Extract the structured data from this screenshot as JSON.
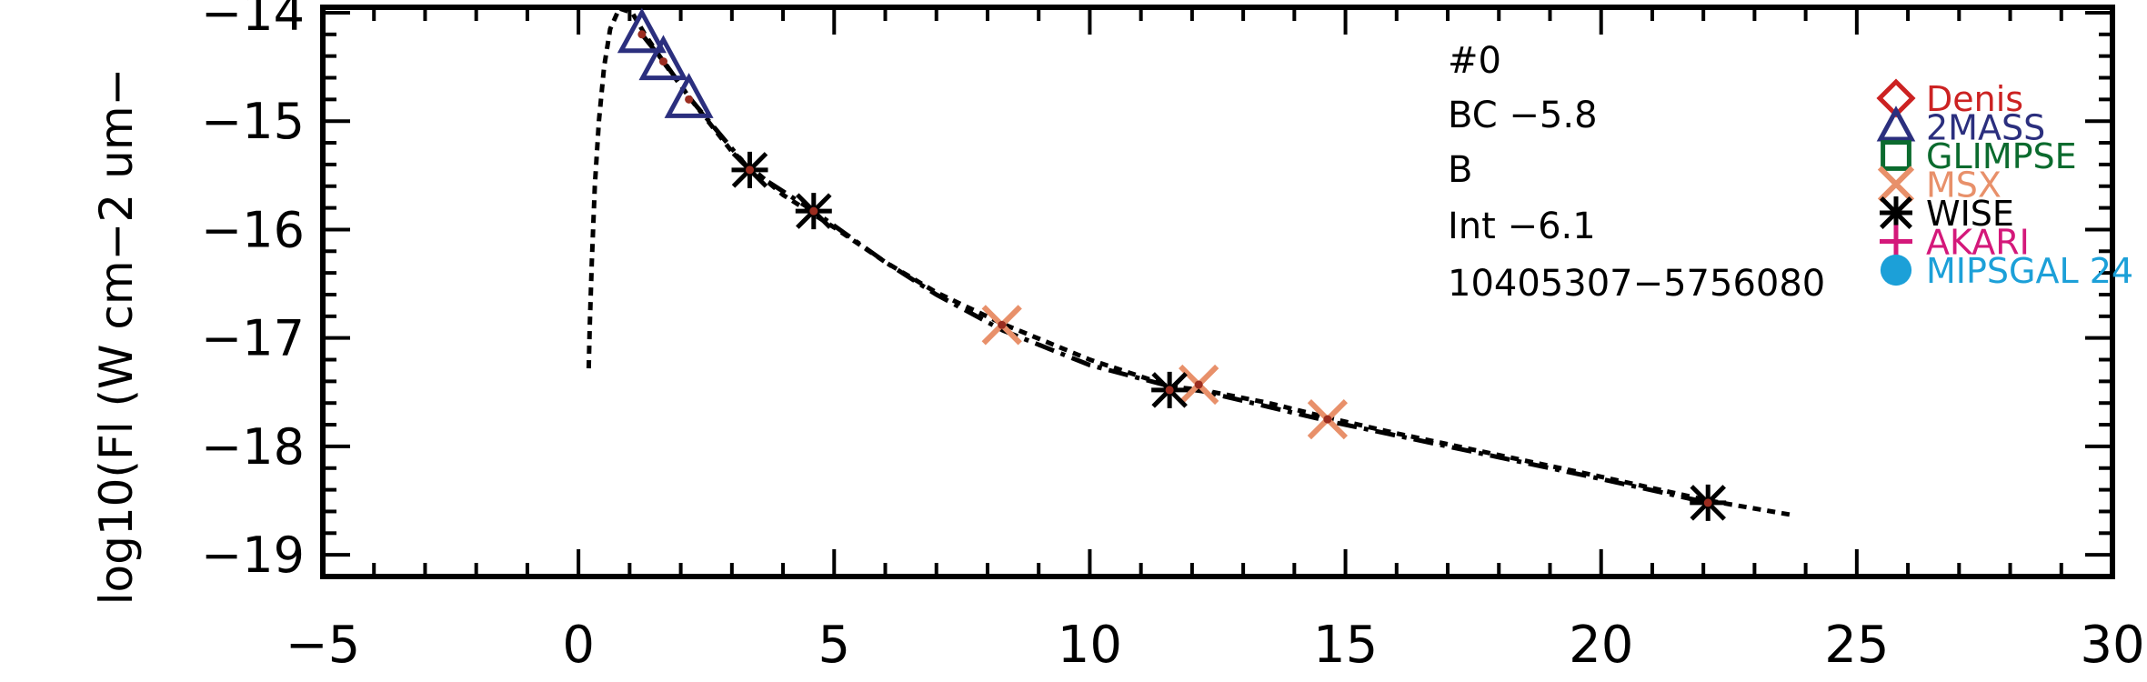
{
  "chart_data": {
    "type": "scatter",
    "title": "",
    "xlabel": "",
    "ylabel": "log10(Fl (W cm−2 um−",
    "xlim": [
      -5,
      30
    ],
    "ylim": [
      -19.2,
      -13.95
    ],
    "x_ticks": [
      -5,
      0,
      5,
      10,
      15,
      20,
      25,
      30
    ],
    "x_tick_labels": [
      "−5",
      "0",
      "5",
      "10",
      "15",
      "20",
      "25",
      "30"
    ],
    "y_ticks": [
      -19,
      -18,
      -17,
      -16,
      -15,
      -14
    ],
    "y_tick_labels": [
      "−19",
      "−18",
      "−17",
      "−16",
      "−15",
      "−14"
    ],
    "grid": false,
    "legend_position": "top-right",
    "annotations": [
      "#0",
      "BC −5.8",
      "B",
      "Int −6.1",
      "10405307−5756080"
    ],
    "series": [
      {
        "name": "Denis",
        "marker": "diamond",
        "color": "#cc2222",
        "points": []
      },
      {
        "name": "2MASS",
        "marker": "triangle",
        "color": "#2b2f7e",
        "points": [
          [
            1.24,
            -14.2
          ],
          [
            1.66,
            -14.45
          ],
          [
            2.16,
            -14.8
          ]
        ]
      },
      {
        "name": "GLIMPSE",
        "marker": "square",
        "color": "#0b6b2e",
        "points": []
      },
      {
        "name": "MSX",
        "marker": "x",
        "color": "#e8906a",
        "points": [
          [
            8.28,
            -16.88
          ],
          [
            12.13,
            -17.43
          ],
          [
            14.65,
            -17.75
          ]
        ]
      },
      {
        "name": "WISE",
        "marker": "asterisk",
        "color": "#000000",
        "points": [
          [
            3.35,
            -15.45
          ],
          [
            4.6,
            -15.83
          ],
          [
            11.56,
            -17.48
          ],
          [
            22.09,
            -18.52
          ]
        ]
      },
      {
        "name": "AKARI",
        "marker": "plus",
        "color": "#d4187a",
        "points": []
      },
      {
        "name": "MIPSGAL 24",
        "marker": "circle",
        "color": "#1ca0d8",
        "points": []
      }
    ],
    "model_dotted": [
      [
        0.2,
        -17.28
      ],
      [
        0.22,
        -16.9
      ],
      [
        0.26,
        -16.3
      ],
      [
        0.32,
        -15.6
      ],
      [
        0.4,
        -15.0
      ],
      [
        0.5,
        -14.5
      ],
      [
        0.62,
        -14.15
      ],
      [
        0.8,
        -13.96
      ],
      [
        1.05,
        -14.0
      ],
      [
        1.3,
        -14.2
      ],
      [
        1.7,
        -14.48
      ],
      [
        2.2,
        -14.8
      ],
      [
        3.0,
        -15.28
      ],
      [
        4.0,
        -15.68
      ],
      [
        5.0,
        -15.98
      ],
      [
        6.0,
        -16.3
      ],
      [
        7.0,
        -16.58
      ],
      [
        8.3,
        -16.87
      ],
      [
        10.0,
        -17.2
      ],
      [
        11.6,
        -17.45
      ],
      [
        12.2,
        -17.48
      ],
      [
        13.5,
        -17.6
      ],
      [
        14.7,
        -17.74
      ],
      [
        16.0,
        -17.88
      ],
      [
        18.0,
        -18.08
      ],
      [
        20.0,
        -18.28
      ],
      [
        22.1,
        -18.5
      ],
      [
        23.7,
        -18.63
      ]
    ],
    "model_dashdot": [
      [
        1.24,
        -14.2
      ],
      [
        1.7,
        -14.47
      ],
      [
        2.2,
        -14.8
      ],
      [
        3.35,
        -15.45
      ],
      [
        4.6,
        -15.83
      ],
      [
        6.0,
        -16.3
      ],
      [
        7.0,
        -16.6
      ],
      [
        8.3,
        -16.93
      ],
      [
        10.0,
        -17.25
      ],
      [
        11.6,
        -17.45
      ],
      [
        12.2,
        -17.49
      ],
      [
        14.7,
        -17.77
      ],
      [
        17.0,
        -18.0
      ],
      [
        20.0,
        -18.3
      ],
      [
        22.1,
        -18.52
      ]
    ],
    "colors": {
      "axis": "#000000"
    }
  }
}
